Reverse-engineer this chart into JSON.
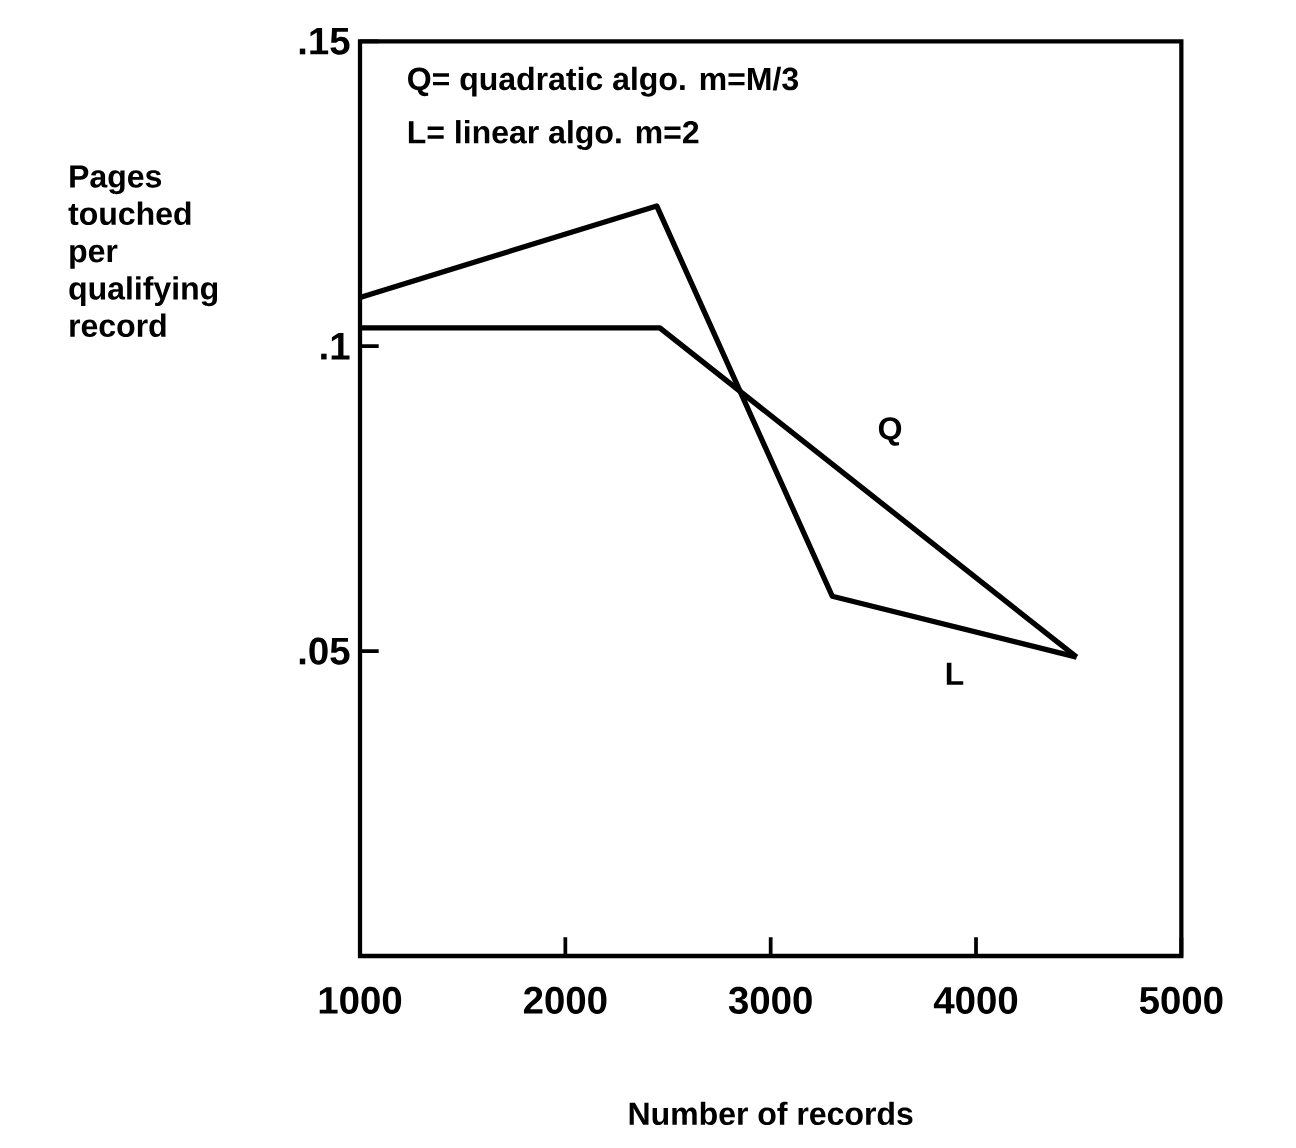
{
  "chart_data": {
    "type": "line",
    "xlabel": "Number of records",
    "ylabel": "Pages touched per qualifying record",
    "series": [
      {
        "name": "Q",
        "color": "#000000",
        "x": [
          1000,
          2460,
          4490
        ],
        "values": [
          0.103,
          0.103,
          0.049
        ]
      },
      {
        "name": "L",
        "color": "#000000",
        "x": [
          1000,
          2445,
          3300,
          4490
        ],
        "values": [
          0.108,
          0.123,
          0.059,
          0.049
        ]
      }
    ],
    "xlim": [
      1000,
      5000
    ],
    "xticks": [
      1000,
      2000,
      3000,
      4000,
      5000
    ],
    "ylim": [
      0,
      0.15
    ],
    "yticks": [
      {
        "value": 0.05,
        "label": ".05"
      },
      {
        "value": 0.1,
        "label": ".1"
      },
      {
        "value": 0.15,
        "label": ".15"
      }
    ],
    "annotations": [
      "Q= quadratic algo. m=M/3",
      "L= linear algo. m=2"
    ],
    "grid": false,
    "marker": "none",
    "line_style": "solid"
  }
}
